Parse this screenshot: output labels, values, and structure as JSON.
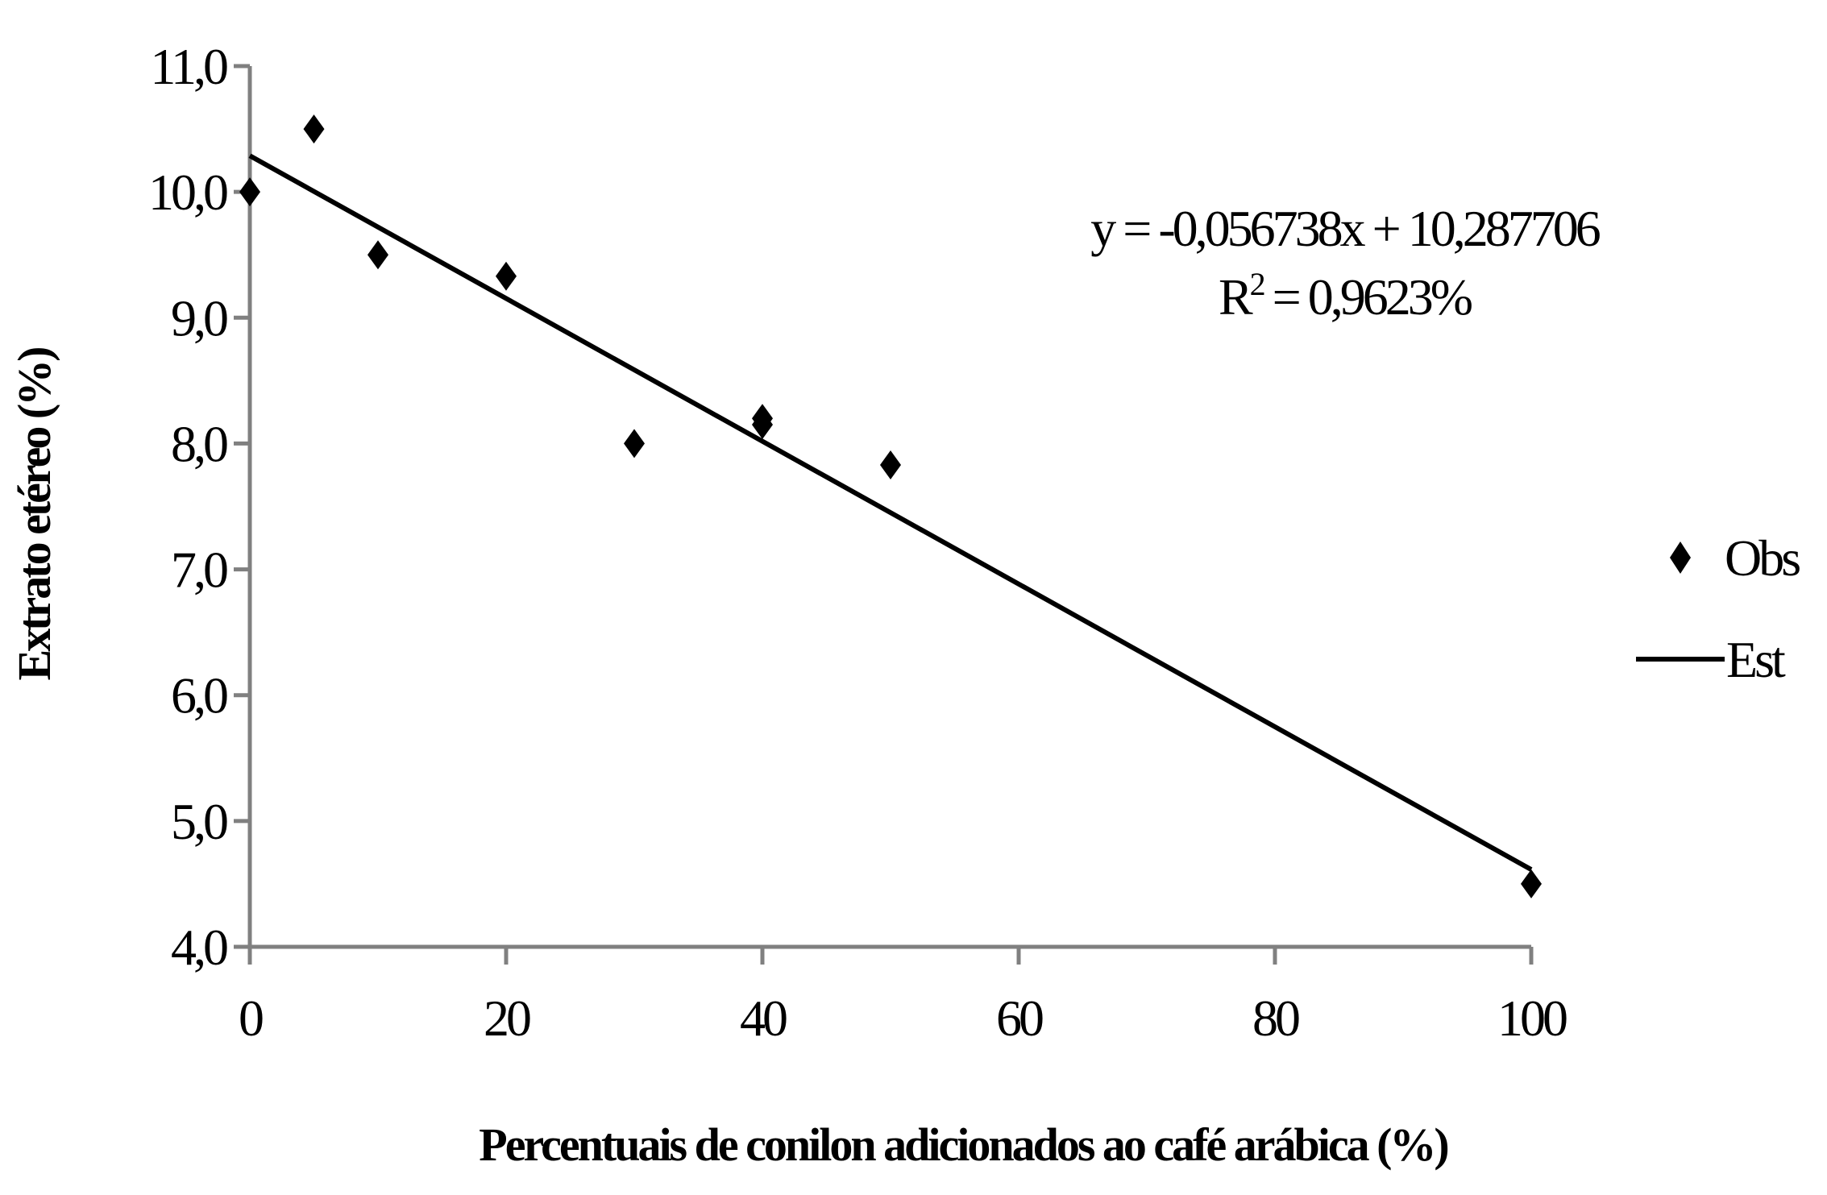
{
  "chart_data": {
    "type": "scatter",
    "xlabel": "Percentuais de conilon adicionados ao café arábica (%)",
    "ylabel": "Extrato etéreo (%)",
    "xlim": [
      0,
      100
    ],
    "ylim": [
      4.0,
      11.0
    ],
    "x_ticks": [
      "0",
      "20",
      "40",
      "60",
      "80",
      "100"
    ],
    "x_tick_values": [
      0,
      20,
      40,
      60,
      80,
      100
    ],
    "y_ticks": [
      "4,0",
      "5,0",
      "6,0",
      "7,0",
      "8,0",
      "9,0",
      "10,0",
      "11,0"
    ],
    "y_tick_values": [
      4,
      5,
      6,
      7,
      8,
      9,
      10,
      11
    ],
    "grid": false,
    "legend_position": "right",
    "series": [
      {
        "name": "Obs",
        "kind": "scatter",
        "marker": "diamond",
        "color": "#000000",
        "x": [
          0,
          5,
          10,
          20,
          30,
          40,
          40,
          50,
          100
        ],
        "y": [
          10.0,
          10.5,
          9.5,
          9.33,
          8.0,
          8.2,
          8.15,
          7.83,
          4.5
        ]
      },
      {
        "name": "Est",
        "kind": "line",
        "color": "#000000",
        "slope": -0.056738,
        "intercept": 10.287706,
        "x": [
          0,
          100
        ]
      }
    ],
    "annotations": {
      "equation": "y = -0,056738x + 10,287706",
      "r2_prefix": "R",
      "r2_sup": "2",
      "r2_value": " = 0,9623%"
    }
  },
  "colors": {
    "axis": "#808080",
    "marks": "#000000",
    "background": "#ffffff"
  }
}
